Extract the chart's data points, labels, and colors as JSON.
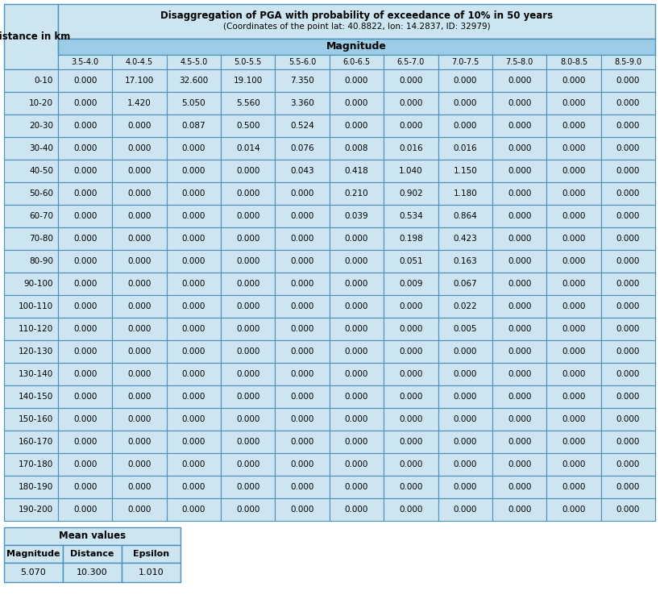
{
  "title_line1": "Disaggregation of PGA with probability of exceedance of 10% in 50 years",
  "title_line2": "(Coordinates of the point lat: 40.8822, lon: 14.2837, ID: 32979)",
  "distance_label": "Distance in km",
  "magnitude_label": "Magnitude",
  "mag_cols": [
    "3.5-4.0",
    "4.0-4.5",
    "4.5-5.0",
    "5.0-5.5",
    "5.5-6.0",
    "6.0-6.5",
    "6.5-7.0",
    "7.0-7.5",
    "7.5-8.0",
    "8.0-8.5",
    "8.5-9.0"
  ],
  "dist_rows": [
    "0-10",
    "10-20",
    "20-30",
    "30-40",
    "40-50",
    "50-60",
    "60-70",
    "70-80",
    "80-90",
    "90-100",
    "100-110",
    "110-120",
    "120-130",
    "130-140",
    "140-150",
    "150-160",
    "160-170",
    "170-180",
    "180-190",
    "190-200"
  ],
  "table_data": [
    [
      0.0,
      17.1,
      32.6,
      19.1,
      7.35,
      0.0,
      0.0,
      0.0,
      0.0,
      0.0,
      0.0
    ],
    [
      0.0,
      1.42,
      5.05,
      5.56,
      3.36,
      0.0,
      0.0,
      0.0,
      0.0,
      0.0,
      0.0
    ],
    [
      0.0,
      0.0,
      0.087,
      0.5,
      0.524,
      0.0,
      0.0,
      0.0,
      0.0,
      0.0,
      0.0
    ],
    [
      0.0,
      0.0,
      0.0,
      0.014,
      0.076,
      0.008,
      0.016,
      0.016,
      0.0,
      0.0,
      0.0
    ],
    [
      0.0,
      0.0,
      0.0,
      0.0,
      0.043,
      0.418,
      1.04,
      1.15,
      0.0,
      0.0,
      0.0
    ],
    [
      0.0,
      0.0,
      0.0,
      0.0,
      0.0,
      0.21,
      0.902,
      1.18,
      0.0,
      0.0,
      0.0
    ],
    [
      0.0,
      0.0,
      0.0,
      0.0,
      0.0,
      0.039,
      0.534,
      0.864,
      0.0,
      0.0,
      0.0
    ],
    [
      0.0,
      0.0,
      0.0,
      0.0,
      0.0,
      0.0,
      0.198,
      0.423,
      0.0,
      0.0,
      0.0
    ],
    [
      0.0,
      0.0,
      0.0,
      0.0,
      0.0,
      0.0,
      0.051,
      0.163,
      0.0,
      0.0,
      0.0
    ],
    [
      0.0,
      0.0,
      0.0,
      0.0,
      0.0,
      0.0,
      0.009,
      0.067,
      0.0,
      0.0,
      0.0
    ],
    [
      0.0,
      0.0,
      0.0,
      0.0,
      0.0,
      0.0,
      0.0,
      0.022,
      0.0,
      0.0,
      0.0
    ],
    [
      0.0,
      0.0,
      0.0,
      0.0,
      0.0,
      0.0,
      0.0,
      0.005,
      0.0,
      0.0,
      0.0
    ],
    [
      0.0,
      0.0,
      0.0,
      0.0,
      0.0,
      0.0,
      0.0,
      0.0,
      0.0,
      0.0,
      0.0
    ],
    [
      0.0,
      0.0,
      0.0,
      0.0,
      0.0,
      0.0,
      0.0,
      0.0,
      0.0,
      0.0,
      0.0
    ],
    [
      0.0,
      0.0,
      0.0,
      0.0,
      0.0,
      0.0,
      0.0,
      0.0,
      0.0,
      0.0,
      0.0
    ],
    [
      0.0,
      0.0,
      0.0,
      0.0,
      0.0,
      0.0,
      0.0,
      0.0,
      0.0,
      0.0,
      0.0
    ],
    [
      0.0,
      0.0,
      0.0,
      0.0,
      0.0,
      0.0,
      0.0,
      0.0,
      0.0,
      0.0,
      0.0
    ],
    [
      0.0,
      0.0,
      0.0,
      0.0,
      0.0,
      0.0,
      0.0,
      0.0,
      0.0,
      0.0,
      0.0
    ],
    [
      0.0,
      0.0,
      0.0,
      0.0,
      0.0,
      0.0,
      0.0,
      0.0,
      0.0,
      0.0,
      0.0
    ],
    [
      0.0,
      0.0,
      0.0,
      0.0,
      0.0,
      0.0,
      0.0,
      0.0,
      0.0,
      0.0,
      0.0
    ]
  ],
  "mean_title": "Mean values",
  "mean_headers": [
    "Magnitude",
    "Distance",
    "Epsilon"
  ],
  "mean_values": [
    "5.070",
    "10.300",
    "1.010"
  ],
  "bg_light": "#cce5f0",
  "bg_header": "#9dcde6",
  "border_color": "#4a90b8",
  "text_color": "#000000"
}
